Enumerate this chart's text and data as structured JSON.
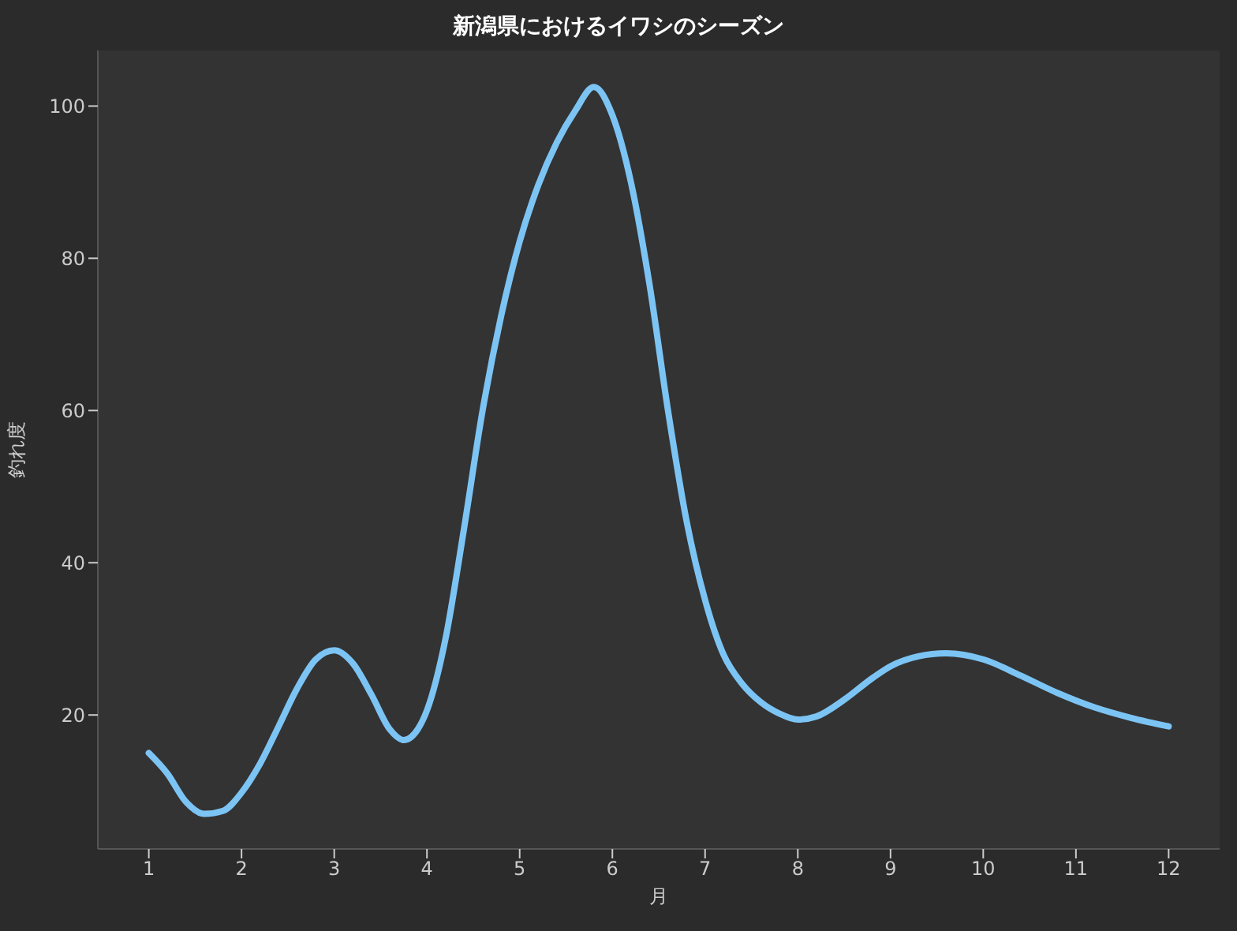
{
  "chart_data": {
    "type": "line",
    "title": "新潟県におけるイワシのシーズン",
    "xlabel": "月",
    "ylabel": "釣れ度",
    "xlim": [
      0.45,
      12.55
    ],
    "xticks": [
      1,
      2,
      3,
      4,
      5,
      6,
      7,
      8,
      9,
      10,
      11,
      12
    ],
    "ylim": [
      2.4,
      107.3
    ],
    "yticks": [
      20,
      40,
      60,
      80,
      100
    ],
    "grid": false,
    "legend": false,
    "marker": "none",
    "line_style": "solid",
    "series": [
      {
        "color": "#7cc4f4",
        "x": [
          1.0,
          1.2,
          1.4,
          1.6,
          1.8,
          2.0,
          2.2,
          2.4,
          2.6,
          2.8,
          3.0,
          3.2,
          3.4,
          3.6,
          3.75,
          3.9,
          4.0,
          4.2,
          4.4,
          4.6,
          4.8,
          5.0,
          5.2,
          5.4,
          5.6,
          5.8,
          6.0,
          6.2,
          6.4,
          6.6,
          6.8,
          7.0,
          7.2,
          7.4,
          7.6,
          7.8,
          8.0,
          8.2,
          8.5,
          8.8,
          9.0,
          9.3,
          9.6,
          10.0,
          10.4,
          10.8,
          11.2,
          11.6,
          12.0
        ],
        "values": [
          15,
          12.3,
          8.6,
          7,
          7.4,
          9.8,
          13.6,
          18.5,
          23.5,
          27.3,
          28.5,
          26.8,
          22.7,
          18.1,
          16.7,
          18.1,
          20.6,
          30,
          44.5,
          60,
          72.4,
          82.2,
          89.6,
          95.2,
          99.4,
          102.5,
          98.8,
          90,
          76.6,
          60,
          45.5,
          35.1,
          27.9,
          24.1,
          21.7,
          20.2,
          19.4,
          19.8,
          22,
          24.8,
          26.4,
          27.7,
          28.1,
          27.3,
          25.2,
          22.9,
          21,
          19.6,
          18.5
        ]
      }
    ]
  }
}
